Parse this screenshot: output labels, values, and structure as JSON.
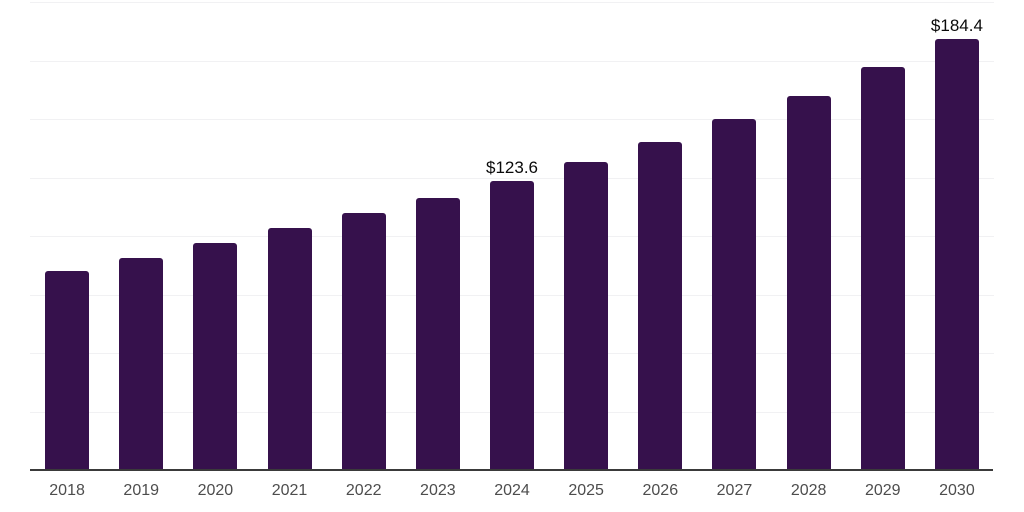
{
  "chart": {
    "background_color": "#ffffff",
    "bar_color": "#36114C",
    "axis_color": "#3a3a3a",
    "gridline_color": "#f1f1f3",
    "tick_label_color": "#4d4d4d",
    "data_label_color": "#0a0a0a"
  },
  "chart_data": {
    "type": "bar",
    "title": "",
    "xlabel": "",
    "ylabel": "",
    "categories": [
      "2018",
      "2019",
      "2020",
      "2021",
      "2022",
      "2023",
      "2024",
      "2025",
      "2026",
      "2027",
      "2028",
      "2029",
      "2030"
    ],
    "values": [
      85.0,
      90.6,
      96.8,
      103.4,
      110.0,
      116.2,
      123.6,
      131.6,
      140.2,
      150.2,
      159.8,
      172.2,
      184.4
    ],
    "ylim": [
      0,
      200
    ],
    "grid_step": 25,
    "grid": true,
    "legend": false,
    "data_labels": [
      {
        "category": "2024",
        "text": "$123.6"
      },
      {
        "category": "2030",
        "text": "$184.4"
      }
    ]
  }
}
